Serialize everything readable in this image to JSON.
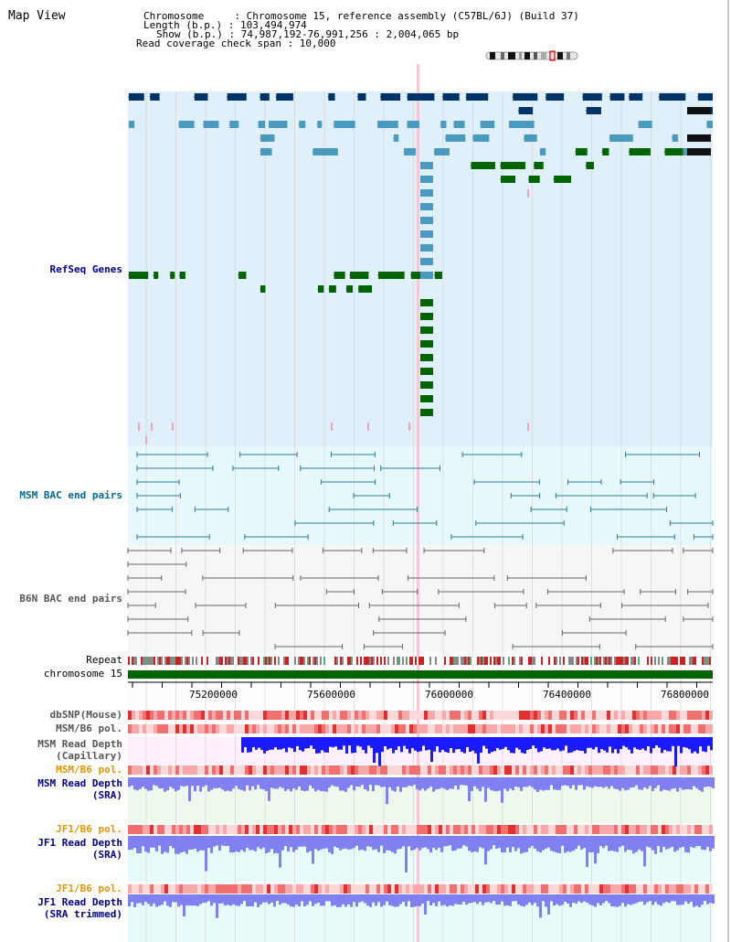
{
  "header": {
    "title": "Map View",
    "lines": [
      "Chromosome     : Chromosome 15, reference assembly (C57BL/6J) (Build 37)",
      "Length (b.p.) : 103,494,974",
      "Show (b.p.) : 74,987,192-76,991,256 : 2,004,065 bp",
      "Read coverage check span : 10,000"
    ]
  },
  "tracks": {
    "refseq": "RefSeq Genes",
    "msm_bac": "MSM BAC end pairs",
    "b6n_bac": "B6N BAC end pairs",
    "repeat": "Repeat",
    "chromosome": "chromosome 15",
    "dbsnp": "dbSNP(Mouse)",
    "msm_b6_pol_1": "MSM/B6 pol.",
    "msm_depth_cap_1": "MSM Read Depth",
    "msm_depth_cap_2": "(Capillary)",
    "msm_b6_pol_2": "MSM/B6 pol.",
    "msm_depth_sra_1": "MSM Read Depth",
    "msm_depth_sra_2": "(SRA)",
    "jf1_b6_pol_1": "JF1/B6 pol.",
    "jf1_depth_sra_1": "JF1 Read Depth",
    "jf1_depth_sra_2": "(SRA)",
    "jf1_b6_pol_2": "JF1/B6 pol.",
    "jf1_depth_trim_1": "JF1 Read Depth",
    "jf1_depth_trim_2": "(SRA trimmed)"
  },
  "axis": {
    "ticks": [
      "75200000",
      "75600000",
      "76000000",
      "76400000",
      "76800000"
    ]
  },
  "colors": {
    "refseq_bg": "#dff0fa",
    "msm_bac_bg": "#e6f8fb",
    "b6n_bac_bg": "#f4f6f8",
    "navy_gene": "#003366",
    "light_gene": "#4a9ac0",
    "green_gene": "#006400",
    "chromosome_bar": "#006400",
    "msm_depth_bar": "#1a1aff",
    "sra_depth_bar": "#8080f0"
  }
}
